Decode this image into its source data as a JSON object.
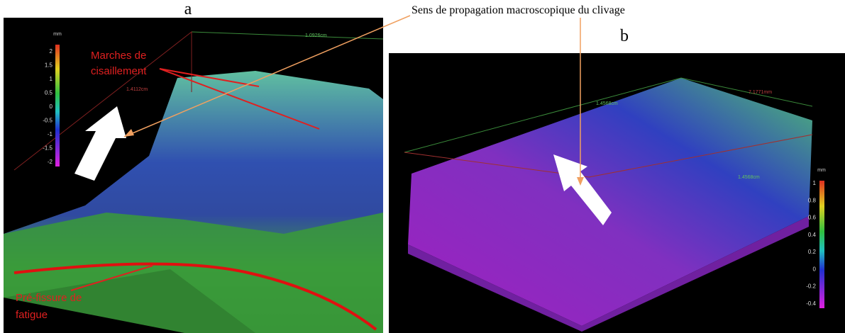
{
  "figure": {
    "annotation": "Sens de propagation macroscopique du clivage",
    "panels": [
      {
        "label": "a",
        "callouts": [
          [
            "Marches de",
            "cisaillement"
          ],
          [
            "Pré-fissure de",
            "fatigue"
          ]
        ],
        "dimensions": [
          "1.0926cm",
          "1.4112cm"
        ],
        "colorbar": {
          "unit": "mm",
          "ticks": [
            "2",
            "1.5",
            "1",
            "0.5",
            "0",
            "-0.5",
            "-1",
            "-1.5",
            "-2"
          ]
        }
      },
      {
        "label": "b",
        "dimensions": [
          "7.1771mm",
          "1.4568cm",
          "1.4568cm"
        ],
        "colorbar": {
          "unit": "mm",
          "ticks": [
            "1",
            "0.8",
            "0.6",
            "0.4",
            "0.2",
            "0",
            "-0.2",
            "-0.4"
          ]
        }
      }
    ]
  }
}
